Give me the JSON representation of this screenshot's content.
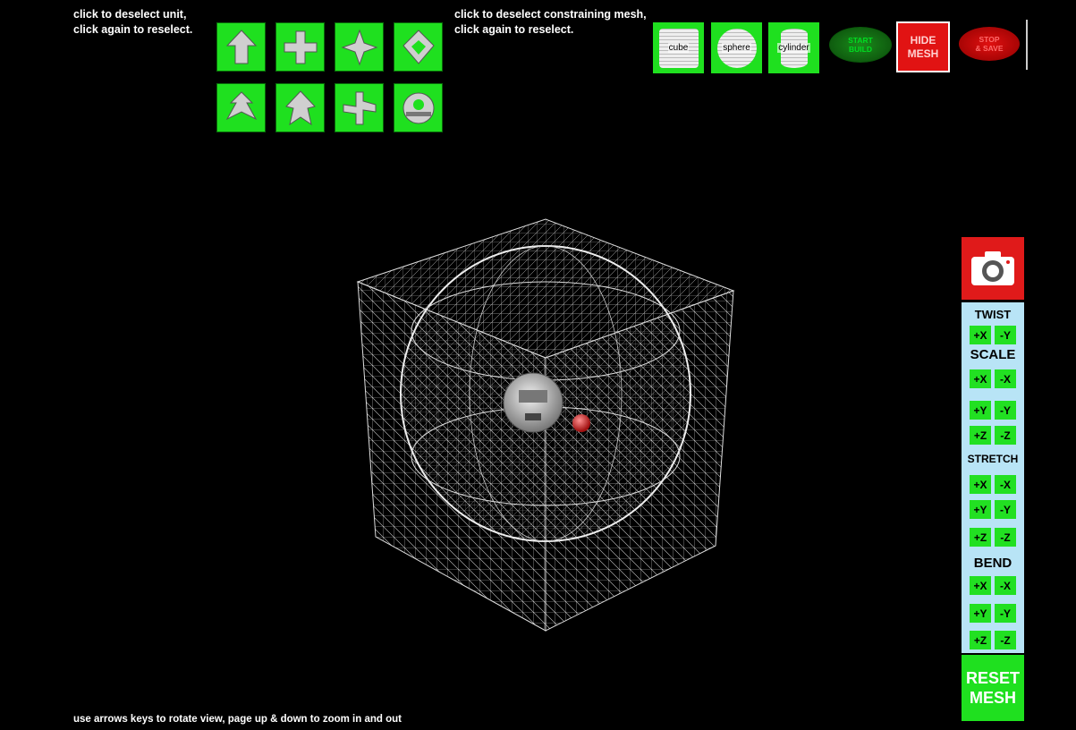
{
  "unit_hint": {
    "line1": "click to deselect unit,",
    "line2": "click again to reselect."
  },
  "mesh_hint": {
    "line1": "click to deselect constraining mesh,",
    "line2": "click again to reselect."
  },
  "units": [
    {
      "icon": "arrow-up-unit-icon"
    },
    {
      "icon": "cross-junction-unit-icon"
    },
    {
      "icon": "star-junction-unit-icon"
    },
    {
      "icon": "diamond-unit-icon"
    },
    {
      "icon": "tri-arrow-unit-icon"
    },
    {
      "icon": "folded-arrow-unit-icon"
    },
    {
      "icon": "plus-junction-unit-icon"
    },
    {
      "icon": "ring-unit-icon"
    }
  ],
  "meshes": {
    "cube": "cube",
    "sphere": "sphere",
    "cylinder": "cylinder"
  },
  "controls": {
    "start_build": [
      "START",
      "BUILD"
    ],
    "hide_mesh": [
      "HIDE",
      "MESH"
    ],
    "stop_save": [
      "STOP",
      "& SAVE"
    ]
  },
  "panel": {
    "twist": {
      "label": "TWIST",
      "buttons": [
        "+X",
        "-Y"
      ]
    },
    "scale": {
      "label": "SCALE",
      "rows": [
        [
          "+X",
          "-X"
        ],
        [
          "+Y",
          "-Y"
        ],
        [
          "+Z",
          "-Z"
        ]
      ]
    },
    "stretch": {
      "label": "STRETCH",
      "rows": [
        [
          "+X",
          "-X"
        ],
        [
          "+Y",
          "-Y"
        ],
        [
          "+Z",
          "-Z"
        ]
      ]
    },
    "bend": {
      "label": "BEND",
      "rows": [
        [
          "+X",
          "-X"
        ],
        [
          "+Y",
          "-Y"
        ],
        [
          "+Z",
          "-Z"
        ]
      ]
    }
  },
  "reset": [
    "RESET",
    "MESH"
  ],
  "footer": "use arrows keys to rotate view, page up & down to zoom in and out",
  "colors": {
    "green": "#1fe01f",
    "red": "#e11313",
    "panel": "#b8e4f6",
    "background": "#000000"
  }
}
